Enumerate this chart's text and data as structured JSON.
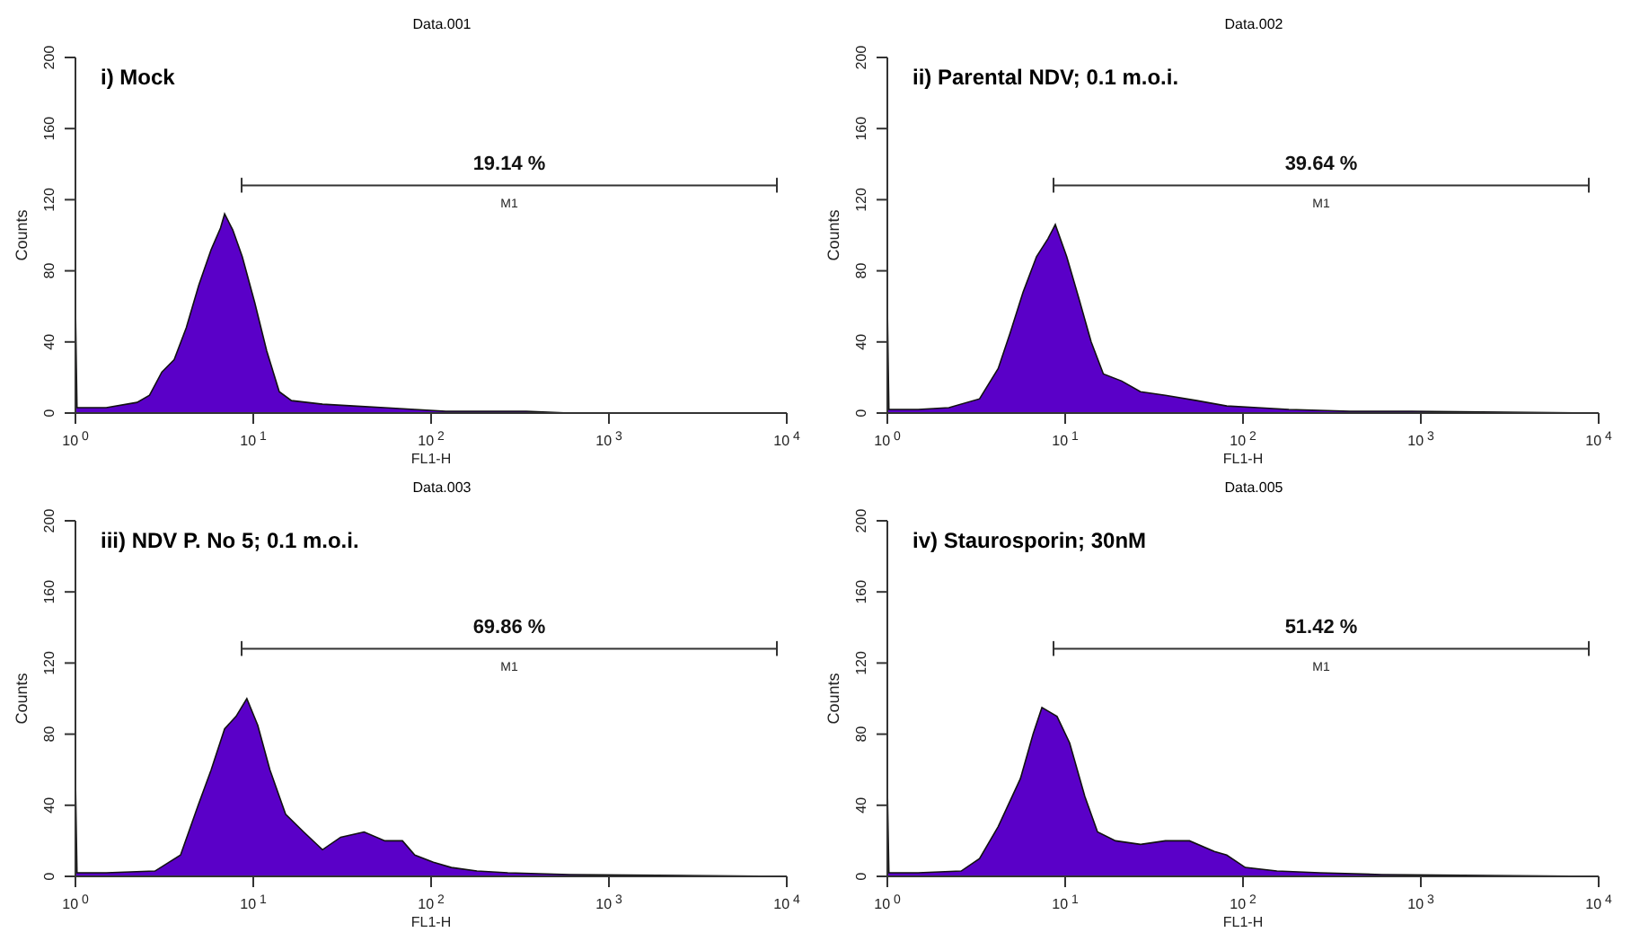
{
  "chart_data": [
    {
      "type": "area",
      "title": "Data.001",
      "subtitle": "i) Mock",
      "xlabel": "FL1-H",
      "ylabel": "Counts",
      "log": "x",
      "xlim": [
        1,
        10000
      ],
      "ylim": [
        0,
        200
      ],
      "xticks": [
        {
          "value": 1,
          "label": "10$^{0}$"
        },
        {
          "value": 10,
          "label": "10$^{1}$"
        },
        {
          "value": 100,
          "label": "10$^{2}$"
        },
        {
          "value": 1000,
          "label": "10$^{3}$"
        },
        {
          "value": 10000,
          "label": "10$^{4}$"
        }
      ],
      "yticks": [
        0,
        40,
        80,
        120,
        160,
        200
      ],
      "annotations": [
        "19.14 %"
      ],
      "series": [
        {
          "color": "#5a00c8",
          "x": [
            1,
            1.02,
            1.49,
            2.22,
            2.61,
            3.06,
            3.59,
            4.2,
            4.94,
            5.8,
            6.54,
            6.9,
            7.67,
            8.67,
            10.2,
            11.9,
            14,
            16.4,
            24.5,
            36.6,
            54.6,
            81,
            121,
            181,
            343,
            600,
            9900
          ],
          "values": [
            60,
            3,
            3,
            6,
            10,
            23,
            30,
            48,
            72,
            92,
            104,
            112,
            103,
            88,
            62,
            35,
            12,
            7,
            5,
            4,
            3,
            2,
            1,
            1,
            1,
            0,
            0
          ]
        },
        {
          "type": "line",
          "name": "M1",
          "color": "#333333",
          "x": [
            8.6,
            8.6,
            8.6,
            8800,
            8800,
            8800
          ],
          "values": [
            124,
            132,
            128,
            128,
            132,
            124
          ]
        }
      ]
    },
    {
      "type": "area",
      "title": "Data.002",
      "subtitle": "ii) Parental NDV; 0.1 m.o.i.",
      "xlabel": "FL1-H",
      "ylabel": "Counts",
      "log": "x",
      "xlim": [
        1,
        10000
      ],
      "ylim": [
        0,
        200
      ],
      "xticks": [
        {
          "value": 1,
          "label": "10$^{0}$"
        },
        {
          "value": 10,
          "label": "10$^{1}$"
        },
        {
          "value": 100,
          "label": "10$^{2}$"
        },
        {
          "value": 1000,
          "label": "10$^{3}$"
        },
        {
          "value": 10000,
          "label": "10$^{4}$"
        }
      ],
      "yticks": [
        0,
        40,
        80,
        120,
        160,
        200
      ],
      "annotations": [
        "39.64 %"
      ],
      "series": [
        {
          "color": "#5a00c8",
          "x": [
            1,
            1.02,
            1.49,
            2.22,
            3.3,
            4.2,
            4.9,
            5.8,
            6.9,
            8,
            8.8,
            10.2,
            11.9,
            14,
            16.4,
            20.8,
            26.5,
            36.6,
            55,
            81,
            121,
            181,
            400,
            890,
            9900
          ],
          "values": [
            60,
            2,
            2,
            3,
            8,
            25,
            45,
            68,
            88,
            98,
            106,
            88,
            65,
            40,
            22,
            18,
            12,
            10,
            7,
            4,
            3,
            2,
            1,
            1,
            0
          ]
        },
        {
          "type": "line",
          "name": "M1",
          "color": "#333333",
          "x": [
            8.6,
            8.6,
            8.6,
            8800,
            8800,
            8800
          ],
          "values": [
            124,
            132,
            128,
            128,
            132,
            124
          ]
        }
      ]
    },
    {
      "type": "area",
      "title": "Data.003",
      "subtitle": "iii) NDV P. No 5; 0.1 m.o.i.",
      "xlabel": "FL1-H",
      "ylabel": "Counts",
      "log": "x",
      "xlim": [
        1,
        10000
      ],
      "ylim": [
        0,
        200
      ],
      "xticks": [
        {
          "value": 1,
          "label": "10$^{0}$"
        },
        {
          "value": 10,
          "label": "10$^{1}$"
        },
        {
          "value": 100,
          "label": "10$^{2}$"
        },
        {
          "value": 1000,
          "label": "10$^{3}$"
        },
        {
          "value": 10000,
          "label": "10$^{4}$"
        }
      ],
      "yticks": [
        0,
        40,
        80,
        120,
        160,
        200
      ],
      "annotations": [
        "69.86 %"
      ],
      "series": [
        {
          "color": "#5a00c8",
          "x": [
            1,
            1.02,
            1.49,
            2.8,
            3.9,
            4.9,
            5.8,
            6.9,
            8,
            9.2,
            10.6,
            12.4,
            15.2,
            19.2,
            24.5,
            31,
            42,
            55,
            69,
            81,
            103,
            130,
            181,
            270,
            600,
            9900
          ],
          "values": [
            55,
            2,
            2,
            3,
            12,
            40,
            60,
            83,
            90,
            100,
            85,
            60,
            35,
            25,
            15,
            22,
            25,
            20,
            20,
            12,
            8,
            5,
            3,
            2,
            1,
            0
          ]
        },
        {
          "type": "line",
          "name": "M1",
          "color": "#333333",
          "x": [
            8.6,
            8.6,
            8.6,
            8800,
            8800,
            8800
          ],
          "values": [
            124,
            132,
            128,
            128,
            132,
            124
          ]
        }
      ]
    },
    {
      "type": "area",
      "title": "Data.005",
      "subtitle": "iv) Staurosporin; 30nM",
      "xlabel": "FL1-H",
      "ylabel": "Counts",
      "log": "x",
      "xlim": [
        1,
        10000
      ],
      "ylim": [
        0,
        200
      ],
      "xticks": [
        {
          "value": 1,
          "label": "10$^{0}$"
        },
        {
          "value": 10,
          "label": "10$^{1}$"
        },
        {
          "value": 100,
          "label": "10$^{2}$"
        },
        {
          "value": 1000,
          "label": "10$^{3}$"
        },
        {
          "value": 10000,
          "label": "10$^{4}$"
        }
      ],
      "yticks": [
        0,
        40,
        80,
        120,
        160,
        200
      ],
      "annotations": [
        "51.42 %"
      ],
      "series": [
        {
          "color": "#5a00c8",
          "x": [
            1,
            1.02,
            1.49,
            2.6,
            3.3,
            4.2,
            5.6,
            6.6,
            7.4,
            9,
            10.6,
            12.9,
            15.2,
            19.2,
            26.5,
            36.6,
            50,
            69,
            81,
            103,
            155,
            270,
            600,
            9900
          ],
          "values": [
            50,
            2,
            2,
            3,
            10,
            28,
            55,
            80,
            95,
            90,
            75,
            45,
            25,
            20,
            18,
            20,
            20,
            14,
            12,
            5,
            3,
            2,
            1,
            0
          ]
        },
        {
          "type": "line",
          "name": "M1",
          "color": "#333333",
          "x": [
            8.6,
            8.6,
            8.6,
            8800,
            8800,
            8800
          ],
          "values": [
            124,
            132,
            128,
            128,
            132,
            124
          ]
        }
      ]
    }
  ]
}
